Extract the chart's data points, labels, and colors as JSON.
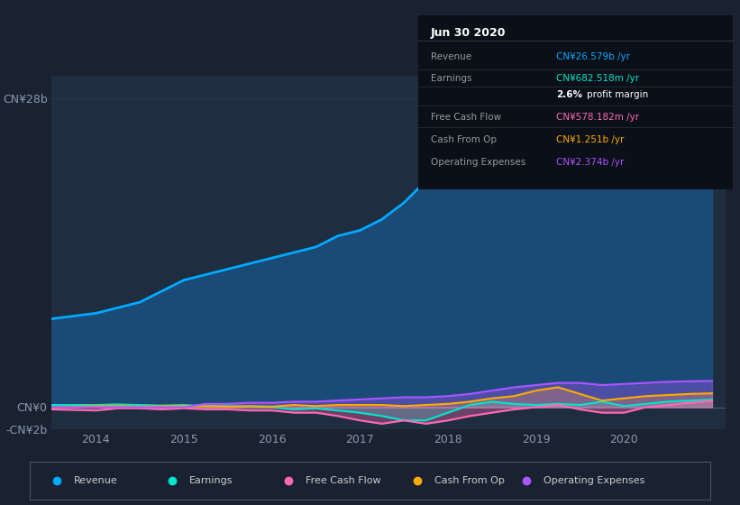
{
  "bg_color": "#1a2232",
  "plot_bg_color": "#1e2d40",
  "grid_color": "#2a3a50",
  "ylim": [
    -2000000000,
    30000000000
  ],
  "series": {
    "Revenue": {
      "color": "#00aaff",
      "fill_color": "#1a5080",
      "fill_alpha": 0.85,
      "linewidth": 2.0,
      "x": [
        2013.5,
        2014.0,
        2014.25,
        2014.5,
        2014.75,
        2015.0,
        2015.25,
        2015.5,
        2015.75,
        2016.0,
        2016.25,
        2016.5,
        2016.75,
        2017.0,
        2017.25,
        2017.5,
        2017.75,
        2018.0,
        2018.25,
        2018.5,
        2018.75,
        2019.0,
        2019.25,
        2019.5,
        2019.75,
        2020.0,
        2020.25,
        2020.5,
        2020.75,
        2021.0
      ],
      "y": [
        8000000000,
        8500000000,
        9000000000,
        9500000000,
        10500000000,
        11500000000,
        12000000000,
        12500000000,
        13000000000,
        13500000000,
        14000000000,
        14500000000,
        15500000000,
        16000000000,
        17000000000,
        18500000000,
        20500000000,
        22500000000,
        24500000000,
        26000000000,
        28000000000,
        29000000000,
        27000000000,
        24500000000,
        23500000000,
        24000000000,
        25000000000,
        26000000000,
        26500000000,
        26579000000
      ]
    },
    "Earnings": {
      "color": "#00e5cc",
      "linewidth": 1.5,
      "x": [
        2013.5,
        2014.0,
        2014.25,
        2014.5,
        2014.75,
        2015.0,
        2015.25,
        2015.5,
        2015.75,
        2016.0,
        2016.25,
        2016.5,
        2016.75,
        2017.0,
        2017.25,
        2017.5,
        2017.75,
        2018.0,
        2018.25,
        2018.5,
        2018.75,
        2019.0,
        2019.25,
        2019.5,
        2019.75,
        2020.0,
        2020.25,
        2020.5,
        2020.75,
        2021.0
      ],
      "y": [
        200000000,
        200000000,
        250000000,
        200000000,
        150000000,
        200000000,
        100000000,
        100000000,
        50000000,
        0,
        -200000000,
        -100000000,
        -300000000,
        -500000000,
        -800000000,
        -1200000000,
        -1200000000,
        -500000000,
        200000000,
        500000000,
        300000000,
        200000000,
        300000000,
        200000000,
        500000000,
        100000000,
        300000000,
        500000000,
        600000000,
        682518000
      ]
    },
    "Free Cash Flow": {
      "color": "#ff69b4",
      "linewidth": 1.5,
      "x": [
        2013.5,
        2014.0,
        2014.25,
        2014.5,
        2014.75,
        2015.0,
        2015.25,
        2015.5,
        2015.75,
        2016.0,
        2016.25,
        2016.5,
        2016.75,
        2017.0,
        2017.25,
        2017.5,
        2017.75,
        2018.0,
        2018.25,
        2018.5,
        2018.75,
        2019.0,
        2019.25,
        2019.5,
        2019.75,
        2020.0,
        2020.25,
        2020.5,
        2020.75,
        2021.0
      ],
      "y": [
        -200000000,
        -300000000,
        -100000000,
        -100000000,
        -200000000,
        -100000000,
        -200000000,
        -200000000,
        -300000000,
        -300000000,
        -500000000,
        -500000000,
        -800000000,
        -1200000000,
        -1500000000,
        -1200000000,
        -1500000000,
        -1200000000,
        -800000000,
        -500000000,
        -200000000,
        0,
        200000000,
        -200000000,
        -500000000,
        -500000000,
        0,
        200000000,
        400000000,
        578182000
      ]
    },
    "Cash From Op": {
      "color": "#ffaa00",
      "linewidth": 1.5,
      "x": [
        2013.5,
        2014.0,
        2014.25,
        2014.5,
        2014.75,
        2015.0,
        2015.25,
        2015.5,
        2015.75,
        2016.0,
        2016.25,
        2016.5,
        2016.75,
        2017.0,
        2017.25,
        2017.5,
        2017.75,
        2018.0,
        2018.25,
        2018.5,
        2018.75,
        2019.0,
        2019.25,
        2019.5,
        2019.75,
        2020.0,
        2020.25,
        2020.5,
        2020.75,
        2021.0
      ],
      "y": [
        0,
        100000000,
        100000000,
        50000000,
        100000000,
        100000000,
        100000000,
        50000000,
        100000000,
        50000000,
        200000000,
        100000000,
        200000000,
        200000000,
        200000000,
        100000000,
        200000000,
        300000000,
        500000000,
        800000000,
        1000000000,
        1500000000,
        1800000000,
        1200000000,
        600000000,
        800000000,
        1000000000,
        1100000000,
        1200000000,
        1251000000
      ]
    },
    "Operating Expenses": {
      "color": "#aa55ff",
      "linewidth": 1.5,
      "x": [
        2013.5,
        2014.0,
        2014.25,
        2014.5,
        2014.75,
        2015.0,
        2015.25,
        2015.5,
        2015.75,
        2016.0,
        2016.25,
        2016.5,
        2016.75,
        2017.0,
        2017.25,
        2017.5,
        2017.75,
        2018.0,
        2018.25,
        2018.5,
        2018.75,
        2019.0,
        2019.25,
        2019.5,
        2019.75,
        2020.0,
        2020.25,
        2020.5,
        2020.75,
        2021.0
      ],
      "y": [
        0,
        0,
        0,
        0,
        0,
        0,
        300000000,
        300000000,
        400000000,
        400000000,
        500000000,
        500000000,
        600000000,
        700000000,
        800000000,
        900000000,
        900000000,
        1000000000,
        1200000000,
        1500000000,
        1800000000,
        2000000000,
        2200000000,
        2200000000,
        2000000000,
        2100000000,
        2200000000,
        2300000000,
        2350000000,
        2374000000
      ]
    }
  },
  "info_box": {
    "title": "Jun 30 2020",
    "rows": [
      {
        "label": "Revenue",
        "value": "CN¥26.579b /yr",
        "value_color": "#00aaff"
      },
      {
        "label": "Earnings",
        "value": "CN¥682.518m /yr",
        "value_color": "#00e5cc"
      },
      {
        "label": "",
        "value": "2.6% profit margin",
        "value_color": "#ffffff",
        "split": true
      },
      {
        "label": "Free Cash Flow",
        "value": "CN¥578.182m /yr",
        "value_color": "#ff69b4"
      },
      {
        "label": "Cash From Op",
        "value": "CN¥1.251b /yr",
        "value_color": "#ffaa00"
      },
      {
        "label": "Operating Expenses",
        "value": "CN¥2.374b /yr",
        "value_color": "#aa55ff"
      }
    ]
  },
  "legend": [
    {
      "label": "Revenue",
      "color": "#00aaff"
    },
    {
      "label": "Earnings",
      "color": "#00e5cc"
    },
    {
      "label": "Free Cash Flow",
      "color": "#ff69b4"
    },
    {
      "label": "Cash From Op",
      "color": "#ffaa00"
    },
    {
      "label": "Operating Expenses",
      "color": "#aa55ff"
    }
  ],
  "xticks": [
    2014,
    2015,
    2016,
    2017,
    2018,
    2019,
    2020
  ],
  "xtick_labels": [
    "2014",
    "2015",
    "2016",
    "2017",
    "2018",
    "2019",
    "2020"
  ],
  "ytick_vals": [
    -2000000000,
    0,
    28000000000
  ],
  "ytick_labels": [
    "-CN¥2b",
    "CN¥0",
    "CN¥28b"
  ]
}
